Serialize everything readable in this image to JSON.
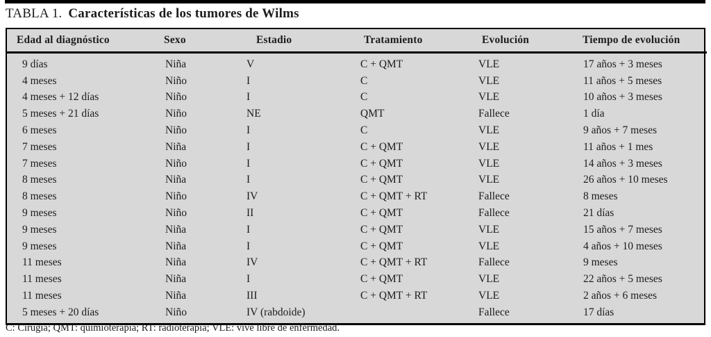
{
  "page": {
    "caption_prefix": "TABLA 1.",
    "caption_title": "Características de los tumores de Wilms",
    "footnote": "C: Cirugía; QMT: quimioterapia; RT: radioterapia; VLE: vive libre de enfermedad."
  },
  "table": {
    "columns": [
      "Edad al diagnóstico",
      "Sexo",
      "Estadio",
      "Tratamiento",
      "Evolución",
      "Tiempo de evolución"
    ],
    "rows": [
      [
        "9 días",
        "Niña",
        "V",
        "C + QMT",
        "VLE",
        "17 años + 3 meses"
      ],
      [
        "4 meses",
        "Niño",
        "I",
        "C",
        "VLE",
        "11 años + 5 meses"
      ],
      [
        "4 meses + 12 días",
        "Niño",
        "I",
        "C",
        "VLE",
        "10 años + 3 meses"
      ],
      [
        "5 meses + 21 días",
        "Niño",
        "NE",
        "QMT",
        "Fallece",
        "1 día"
      ],
      [
        "6 meses",
        "Niño",
        "I",
        "C",
        "VLE",
        "9 años + 7 meses"
      ],
      [
        "7 meses",
        "Niña",
        "I",
        "C + QMT",
        "VLE",
        "11 años + 1 mes"
      ],
      [
        "7 meses",
        "Niño",
        "I",
        "C + QMT",
        "VLE",
        "14 años + 3 meses"
      ],
      [
        "8 meses",
        "Niña",
        "I",
        "C + QMT",
        "VLE",
        "26 años + 10 meses"
      ],
      [
        "8 meses",
        "Niño",
        "IV",
        "C + QMT + RT",
        "Fallece",
        "8 meses"
      ],
      [
        "9 meses",
        "Niño",
        "II",
        "C + QMT",
        "Fallece",
        "21 días"
      ],
      [
        "9 meses",
        "Niña",
        "I",
        "C + QMT",
        "VLE",
        "15 años + 7 meses"
      ],
      [
        "9 meses",
        "Niña",
        "I",
        "C + QMT",
        "VLE",
        "4 años + 10 meses"
      ],
      [
        "11 meses",
        "Niña",
        "IV",
        "C + QMT + RT",
        "Fallece",
        "9 meses"
      ],
      [
        "11 meses",
        "Niña",
        "I",
        "C + QMT",
        "VLE",
        "22 años + 5 meses"
      ],
      [
        "11 meses",
        "Niña",
        "III",
        "C + QMT + RT",
        "VLE",
        "2 años + 6 meses"
      ],
      [
        "5 meses + 20 días",
        "Niño",
        "IV (rabdoide)",
        "",
        "Fallece",
        "17 días"
      ]
    ]
  },
  "colors": {
    "table_background": "#d8d8d8",
    "rule": "#000000",
    "text": "#1c1c1c",
    "page_background": "#ffffff"
  }
}
